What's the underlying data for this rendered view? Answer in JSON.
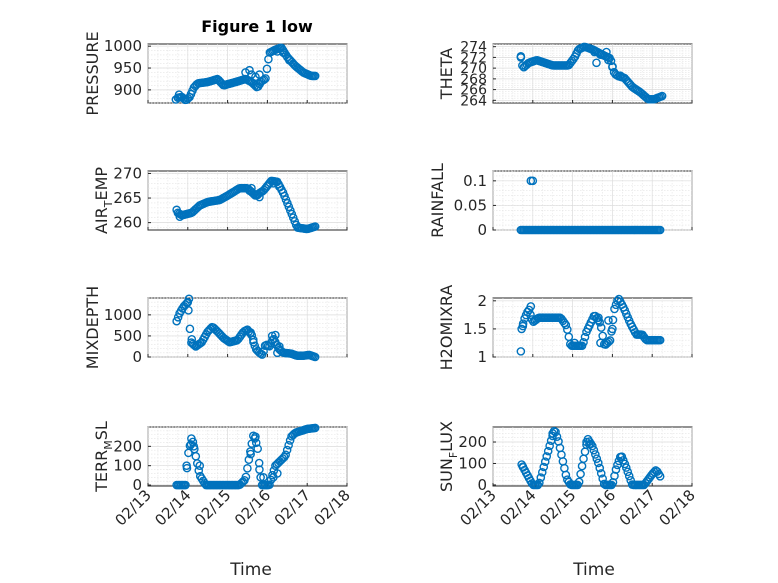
{
  "figure": {
    "title": "Figure 1 low",
    "xlabel": "Time",
    "xticks": [
      "02/13",
      "02/14",
      "02/15",
      "02/16",
      "02/17",
      "02/18"
    ],
    "accent_color": "#0072bd"
  },
  "chart_data": [
    {
      "type": "scatter",
      "name": "PRESSURE",
      "ylabel": "PRESSURE",
      "xlim": [
        0,
        5
      ],
      "ylim": [
        870,
        1005
      ],
      "yticks": [
        900,
        950,
        1000
      ],
      "grid": true,
      "title": "Figure 1 low",
      "knots": [
        [
          0.75,
          882
        ],
        [
          0.85,
          884
        ],
        [
          0.95,
          876
        ],
        [
          1.05,
          884
        ],
        [
          1.15,
          905
        ],
        [
          1.25,
          915
        ],
        [
          1.5,
          918
        ],
        [
          1.75,
          925
        ],
        [
          1.9,
          910
        ],
        [
          2.0,
          913
        ],
        [
          2.2,
          918
        ],
        [
          2.45,
          925
        ],
        [
          2.6,
          918
        ],
        [
          2.75,
          905
        ],
        [
          2.85,
          920
        ],
        [
          2.95,
          925
        ],
        [
          3.05,
          985
        ],
        [
          3.2,
          992
        ],
        [
          3.35,
          997
        ],
        [
          3.5,
          975
        ],
        [
          3.7,
          955
        ],
        [
          3.9,
          940
        ],
        [
          4.1,
          932
        ],
        [
          4.2,
          932
        ]
      ],
      "extra_points": [
        [
          0.7,
          878
        ],
        [
          0.78,
          889
        ],
        [
          2.45,
          940
        ],
        [
          2.55,
          945
        ],
        [
          2.6,
          935
        ],
        [
          2.7,
          930
        ],
        [
          2.8,
          935
        ],
        [
          3.25,
          988
        ],
        [
          3.4,
          985
        ],
        [
          3.55,
          968
        ]
      ]
    },
    {
      "type": "scatter",
      "name": "THETA",
      "ylabel": "THETA",
      "xlim": [
        0,
        5
      ],
      "ylim": [
        263.5,
        274.5
      ],
      "yticks": [
        264,
        266,
        268,
        270,
        272,
        274
      ],
      "grid": true,
      "knots": [
        [
          0.7,
          272
        ],
        [
          0.75,
          270
        ],
        [
          0.9,
          271
        ],
        [
          1.1,
          271.5
        ],
        [
          1.5,
          270.5
        ],
        [
          1.9,
          270.5
        ],
        [
          2.05,
          272
        ],
        [
          2.15,
          273.5
        ],
        [
          2.3,
          274
        ],
        [
          2.5,
          273.5
        ],
        [
          2.75,
          272.5
        ],
        [
          2.95,
          271.8
        ],
        [
          3.05,
          269
        ],
        [
          3.15,
          268.5
        ],
        [
          3.3,
          268.2
        ],
        [
          3.5,
          266.5
        ],
        [
          3.7,
          265.5
        ],
        [
          3.9,
          264.2
        ],
        [
          4.05,
          264.2
        ],
        [
          4.25,
          264.8
        ]
      ],
      "extra_points": [
        [
          0.7,
          272.2
        ],
        [
          2.55,
          273
        ],
        [
          2.6,
          271
        ],
        [
          2.7,
          272.5
        ],
        [
          2.85,
          273
        ],
        [
          2.9,
          271.5
        ],
        [
          3.0,
          270.2
        ],
        [
          3.2,
          268.6
        ]
      ]
    },
    {
      "type": "scatter",
      "name": "AIR_TEMP",
      "ylabel": "AIR_TEMP",
      "xlim": [
        0,
        5
      ],
      "ylim": [
        258.5,
        270.5
      ],
      "yticks": [
        260,
        265,
        270
      ],
      "grid": true,
      "knots": [
        [
          0.75,
          262
        ],
        [
          0.85,
          261.5
        ],
        [
          1.1,
          262
        ],
        [
          1.3,
          263.5
        ],
        [
          1.5,
          264.2
        ],
        [
          1.8,
          264.6
        ],
        [
          2.0,
          265.5
        ],
        [
          2.3,
          267
        ],
        [
          2.5,
          267
        ],
        [
          2.7,
          265.5
        ],
        [
          2.9,
          266.5
        ],
        [
          3.1,
          268.5
        ],
        [
          3.25,
          268.3
        ],
        [
          3.4,
          266
        ],
        [
          3.6,
          262
        ],
        [
          3.75,
          259
        ],
        [
          4.0,
          258.7
        ],
        [
          4.2,
          259.2
        ]
      ],
      "extra_points": [
        [
          0.72,
          262.6
        ],
        [
          0.8,
          261.2
        ],
        [
          2.55,
          266.5
        ],
        [
          2.6,
          267
        ],
        [
          2.75,
          265.6
        ],
        [
          2.8,
          265.2
        ],
        [
          3.15,
          268
        ],
        [
          3.3,
          267.3
        ]
      ]
    },
    {
      "type": "scatter",
      "name": "RAINFALL",
      "ylabel": "RAINFALL",
      "xlim": [
        0,
        5
      ],
      "ylim": [
        0,
        0.12
      ],
      "yticks": [
        0,
        0.05,
        0.1
      ],
      "grid": true,
      "knots": [
        [
          0.7,
          0
        ],
        [
          4.2,
          0
        ]
      ],
      "extra_points": [
        [
          0.95,
          0.1
        ],
        [
          1.0,
          0.1
        ]
      ]
    },
    {
      "type": "scatter",
      "name": "MIXDEPTH",
      "ylabel": "MIXDEPTH",
      "xlim": [
        0,
        5
      ],
      "ylim": [
        0,
        1400
      ],
      "yticks": [
        0,
        500,
        1000
      ],
      "grid": true,
      "knots": [
        [
          0.72,
          850
        ],
        [
          0.8,
          1050
        ],
        [
          0.9,
          1200
        ],
        [
          1.0,
          1300
        ],
        [
          1.08,
          350
        ],
        [
          1.2,
          250
        ],
        [
          1.35,
          350
        ],
        [
          1.5,
          600
        ],
        [
          1.62,
          720
        ],
        [
          1.75,
          600
        ],
        [
          1.9,
          450
        ],
        [
          2.05,
          350
        ],
        [
          2.25,
          400
        ],
        [
          2.4,
          600
        ],
        [
          2.5,
          650
        ],
        [
          2.62,
          500
        ],
        [
          2.7,
          200
        ],
        [
          2.8,
          100
        ],
        [
          2.88,
          50
        ],
        [
          2.95,
          300
        ],
        [
          3.05,
          250
        ],
        [
          3.15,
          450
        ],
        [
          3.28,
          200
        ],
        [
          3.4,
          100
        ],
        [
          3.6,
          80
        ],
        [
          3.75,
          30
        ],
        [
          3.9,
          30
        ],
        [
          4.05,
          50
        ],
        [
          4.2,
          0
        ]
      ],
      "extra_points": [
        [
          1.03,
          1380
        ],
        [
          1.0,
          1300
        ],
        [
          1.1,
          420
        ],
        [
          2.58,
          580
        ],
        [
          2.65,
          350
        ],
        [
          3.12,
          500
        ],
        [
          3.2,
          520
        ],
        [
          3.25,
          100
        ],
        [
          3.3,
          250
        ]
      ]
    },
    {
      "type": "scatter",
      "name": "H2OMIXRA",
      "ylabel": "H2OMIXRA",
      "xlim": [
        0,
        5
      ],
      "ylim": [
        1,
        2.05
      ],
      "yticks": [
        1,
        1.5,
        2
      ],
      "grid": true,
      "knots": [
        [
          0.72,
          1.5
        ],
        [
          0.8,
          1.7
        ],
        [
          0.9,
          1.85
        ],
        [
          1.0,
          1.62
        ],
        [
          1.15,
          1.7
        ],
        [
          1.55,
          1.7
        ],
        [
          1.7,
          1.7
        ],
        [
          1.85,
          1.55
        ],
        [
          1.95,
          1.2
        ],
        [
          2.25,
          1.2
        ],
        [
          2.35,
          1.45
        ],
        [
          2.45,
          1.6
        ],
        [
          2.55,
          1.75
        ],
        [
          2.7,
          1.6
        ],
        [
          2.8,
          1.2
        ],
        [
          2.95,
          1.3
        ],
        [
          3.05,
          1.85
        ],
        [
          3.15,
          2.05
        ],
        [
          3.3,
          1.85
        ],
        [
          3.45,
          1.6
        ],
        [
          3.6,
          1.4
        ],
        [
          3.75,
          1.4
        ],
        [
          3.85,
          1.3
        ],
        [
          4.2,
          1.3
        ]
      ],
      "extra_points": [
        [
          0.7,
          1.1
        ],
        [
          0.75,
          1.55
        ],
        [
          0.95,
          1.9
        ],
        [
          2.05,
          1.25
        ],
        [
          2.15,
          1.2
        ],
        [
          2.65,
          1.7
        ],
        [
          2.7,
          1.25
        ],
        [
          2.85,
          1.25
        ],
        [
          2.9,
          1.65
        ],
        [
          3.0,
          1.5
        ]
      ]
    },
    {
      "type": "scatter",
      "name": "TERR_MSL",
      "ylabel": "TERR_MSL",
      "xlim": [
        0,
        5
      ],
      "ylim": [
        -5,
        300
      ],
      "yticks": [
        0,
        100,
        200
      ],
      "grid": true,
      "knots": [
        [
          0.72,
          0
        ],
        [
          0.95,
          0
        ],
        [
          1.0,
          150
        ],
        [
          1.1,
          250
        ],
        [
          1.2,
          150
        ],
        [
          1.3,
          50
        ],
        [
          1.45,
          0
        ],
        [
          2.3,
          0
        ],
        [
          2.45,
          30
        ],
        [
          2.55,
          150
        ],
        [
          2.65,
          260
        ],
        [
          2.75,
          200
        ],
        [
          2.85,
          0
        ],
        [
          3.05,
          0
        ],
        [
          3.2,
          100
        ],
        [
          3.45,
          150
        ],
        [
          3.6,
          250
        ],
        [
          3.7,
          270
        ],
        [
          4.0,
          290
        ],
        [
          4.2,
          295
        ]
      ],
      "extra_points": [
        [
          0.97,
          100
        ],
        [
          1.08,
          210
        ],
        [
          1.15,
          200
        ],
        [
          1.3,
          100
        ],
        [
          2.58,
          160
        ],
        [
          2.7,
          250
        ],
        [
          2.8,
          80
        ],
        [
          2.9,
          40
        ],
        [
          3.15,
          40
        ],
        [
          3.25,
          60
        ]
      ]
    },
    {
      "type": "scatter",
      "name": "SUN_FLUX",
      "ylabel": "SUN_FLUX",
      "xlim": [
        0,
        5
      ],
      "ylim": [
        -5,
        270
      ],
      "yticks": [
        0,
        100,
        200
      ],
      "grid": true,
      "knots": [
        [
          0.72,
          95
        ],
        [
          0.88,
          40
        ],
        [
          1.0,
          0
        ],
        [
          1.15,
          0
        ],
        [
          1.3,
          100
        ],
        [
          1.45,
          200
        ],
        [
          1.55,
          260
        ],
        [
          1.65,
          200
        ],
        [
          1.85,
          30
        ],
        [
          1.95,
          0
        ],
        [
          2.15,
          0
        ],
        [
          2.25,
          100
        ],
        [
          2.38,
          215
        ],
        [
          2.5,
          180
        ],
        [
          2.65,
          100
        ],
        [
          2.8,
          0
        ],
        [
          3.0,
          0
        ],
        [
          3.1,
          80
        ],
        [
          3.22,
          140
        ],
        [
          3.35,
          80
        ],
        [
          3.5,
          0
        ],
        [
          3.8,
          0
        ],
        [
          4.0,
          50
        ],
        [
          4.1,
          70
        ],
        [
          4.2,
          40
        ]
      ],
      "extra_points": [
        [
          0.75,
          85
        ],
        [
          1.5,
          240
        ],
        [
          2.35,
          200
        ],
        [
          2.42,
          190
        ],
        [
          3.2,
          130
        ]
      ]
    }
  ]
}
